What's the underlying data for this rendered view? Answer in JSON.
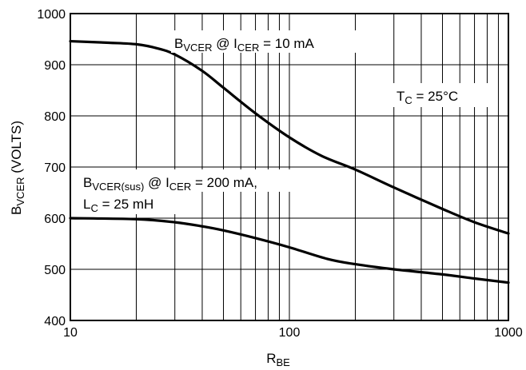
{
  "chart_data": {
    "type": "line",
    "title": "",
    "xscale": "log",
    "xlim": [
      10,
      1000
    ],
    "ylim": [
      400,
      1000
    ],
    "grid": true,
    "xticks": [
      10,
      100,
      1000
    ],
    "xtick_labels": [
      "10",
      "100",
      "1000"
    ],
    "yticks": [
      400,
      500,
      600,
      700,
      800,
      900,
      1000
    ],
    "ytick_labels": [
      "400",
      "500",
      "600",
      "700",
      "800",
      "900",
      "1000"
    ],
    "xlabel": {
      "main": "R",
      "sub": "BE"
    },
    "ylabel": {
      "main": "B",
      "sub": "VCER",
      "suffix": " (VOLTS)"
    },
    "series": [
      {
        "id": "bvcer",
        "color": "#000000",
        "x": [
          10,
          15,
          20,
          25,
          30,
          40,
          50,
          70,
          100,
          140,
          200,
          300,
          500,
          700,
          1000
        ],
        "y": [
          946,
          943,
          940,
          932,
          920,
          888,
          855,
          805,
          758,
          722,
          695,
          660,
          618,
          592,
          570
        ]
      },
      {
        "id": "bvcer_sus",
        "color": "#000000",
        "x": [
          10,
          20,
          30,
          40,
          50,
          70,
          100,
          150,
          200,
          300,
          500,
          700,
          1000
        ],
        "y": [
          600,
          598,
          592,
          584,
          576,
          561,
          543,
          520,
          510,
          500,
          490,
          482,
          474
        ]
      }
    ],
    "annotations": {
      "a1": {
        "b": "B",
        "b_sub": "VCER",
        "mid": " @ I",
        "i_sub": "CER",
        "tail": " = 10 mA"
      },
      "a2": {
        "b": "B",
        "b_sub": "VCER(sus)",
        "mid": " @ I",
        "i_sub": "CER",
        "tail": " = 200 mA,"
      },
      "a3": {
        "l": "L",
        "l_sub": "C",
        "tail": " = 25 mH"
      },
      "a4": {
        "t": "T",
        "t_sub": "C",
        "tail": " = 25°C"
      }
    }
  }
}
